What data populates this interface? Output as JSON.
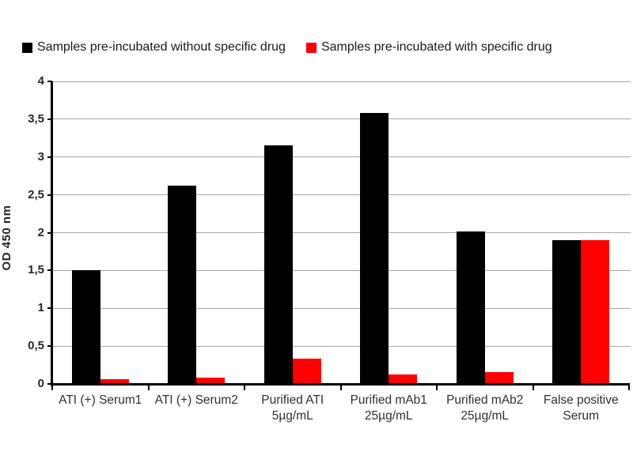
{
  "chart_data": {
    "type": "bar",
    "title": "",
    "xlabel": "",
    "ylabel": "OD 450 nm",
    "ylim": [
      0,
      4
    ],
    "grid": true,
    "legend_position": "top",
    "decimal_separator": ",",
    "ytick_values": [
      0,
      0.5,
      1,
      1.5,
      2,
      2.5,
      3,
      3.5,
      4
    ],
    "ytick_labels": [
      "0",
      "0,5",
      "1",
      "1,5",
      "2",
      "2,5",
      "3",
      "3,5",
      "4"
    ],
    "categories": [
      [
        "ATI (+) Serum1"
      ],
      [
        "ATI (+) Serum2"
      ],
      [
        "Purified ATI",
        "5µg/mL"
      ],
      [
        "Purified mAb1",
        "25µg/mL"
      ],
      [
        "Purified mAb2",
        "25µg/mL"
      ],
      [
        "False positive",
        "Serum"
      ]
    ],
    "series": [
      {
        "name": "Samples pre-incubated without specific drug",
        "color": "#000000",
        "values": [
          1.5,
          2.62,
          3.15,
          3.58,
          2.02,
          1.9
        ]
      },
      {
        "name": "Samples pre-incubated with specific drug",
        "color": "#ff0000",
        "values": [
          0.06,
          0.08,
          0.33,
          0.13,
          0.16,
          1.9
        ]
      }
    ]
  },
  "colors": {
    "grid": "#a6a6a6",
    "axis": "#000000",
    "tick_text": "#262626",
    "category_text": "#303030",
    "background": "#ffffff"
  }
}
